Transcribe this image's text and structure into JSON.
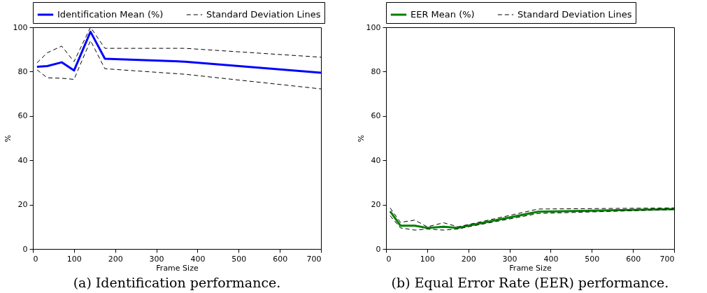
{
  "chart_data": [
    {
      "type": "line",
      "title": "(a) Identification performance.",
      "xlabel": "Frame Size",
      "ylabel": "%",
      "xlim": [
        0,
        700
      ],
      "xticks": [
        0,
        100,
        200,
        300,
        400,
        500,
        600,
        700
      ],
      "ylim": [
        0,
        100
      ],
      "yticks": [
        0,
        20,
        40,
        60,
        80,
        100
      ],
      "grid": false,
      "legend": "top",
      "x": [
        10,
        35,
        70,
        100,
        140,
        175,
        370,
        700
      ],
      "series": [
        {
          "name": "Identification Mean (%)",
          "color": "#0000ff",
          "line_style": "solid",
          "values": [
            82.2,
            82.5,
            84.2,
            80.5,
            98,
            85.8,
            84.5,
            79.5
          ]
        },
        {
          "name": "Standard Deviation Lines",
          "color": "#000000",
          "line_style": "dashed",
          "values": [
            84,
            88.5,
            91.5,
            84.5,
            100,
            90.5,
            90.5,
            86.5
          ]
        },
        {
          "color": "#000000",
          "line_style": "dashed",
          "values": [
            80.8,
            77.2,
            77,
            76.5,
            94,
            81.3,
            78.8,
            72.2
          ]
        }
      ]
    },
    {
      "type": "line",
      "title": "(b) Equal Error Rate (EER) performance.",
      "xlabel": "Frame Size",
      "ylabel": "%",
      "xlim": [
        0,
        700
      ],
      "xticks": [
        0,
        100,
        200,
        300,
        400,
        500,
        600,
        700
      ],
      "ylim": [
        0,
        100
      ],
      "yticks": [
        0,
        20,
        40,
        60,
        80,
        100
      ],
      "grid": false,
      "legend": "top",
      "x": [
        10,
        35,
        70,
        100,
        140,
        175,
        200,
        370,
        700
      ],
      "series": [
        {
          "name": "EER Mean (%)",
          "color": "#008000",
          "line_style": "solid",
          "values": [
            17,
            10.5,
            10.5,
            9.5,
            10,
            9.5,
            10.5,
            16.8,
            18
          ]
        },
        {
          "name": "Standard Deviation Lines",
          "color": "#000000",
          "line_style": "dashed",
          "values": [
            18.5,
            12,
            13,
            10,
            11.8,
            10,
            11,
            18,
            18.5
          ]
        },
        {
          "color": "#000000",
          "line_style": "dashed",
          "values": [
            15,
            9.5,
            8.5,
            9,
            8.5,
            9,
            10,
            16,
            17.8
          ]
        }
      ]
    }
  ]
}
